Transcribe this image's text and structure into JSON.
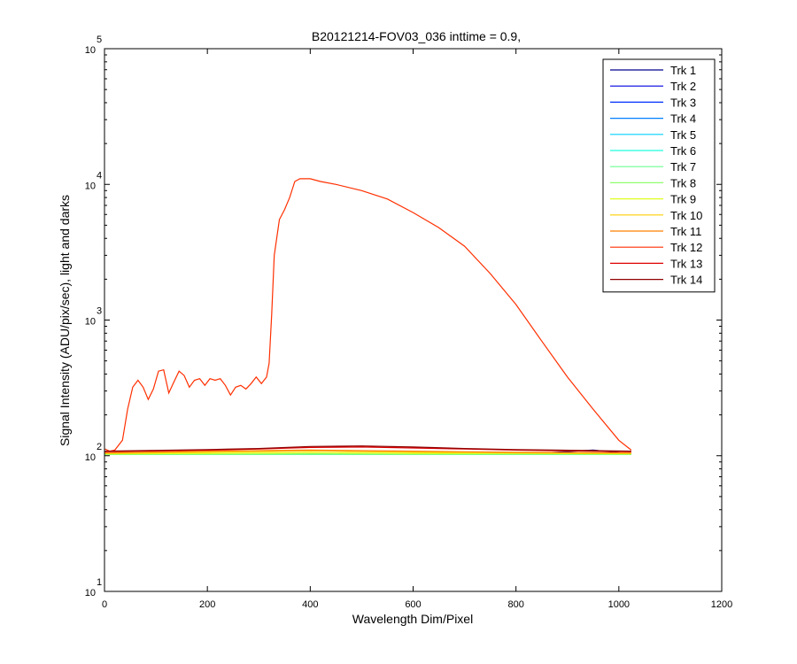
{
  "chart_data": {
    "type": "line",
    "title": "B20121214-FOV03_036 inttime = 0.9,",
    "xlabel": "Wavelength Dim/Pixel",
    "ylabel": "Signal Intensity (ADU/pix/sec), light and darks",
    "xlim": [
      0,
      1200
    ],
    "ylim": [
      10,
      100000
    ],
    "yscale": "log",
    "grid": false,
    "legend_position": "top-right",
    "x_ticks": [
      0,
      200,
      400,
      600,
      800,
      1000,
      1200
    ],
    "x_tick_labels": [
      "0",
      "200",
      "400",
      "600",
      "800",
      "1000",
      "1200"
    ],
    "y_ticks": [
      {
        "value": 10,
        "base": "10",
        "exp": "1"
      },
      {
        "value": 100,
        "base": "10",
        "exp": "2"
      },
      {
        "value": 1000,
        "base": "10",
        "exp": "3"
      },
      {
        "value": 10000,
        "base": "10",
        "exp": "4"
      },
      {
        "value": 100000,
        "base": "10",
        "exp": "5"
      }
    ],
    "series": [
      {
        "name": "Trk 1",
        "color": "#00008f",
        "x": [
          1,
          200,
          400,
          600,
          800,
          950,
          1024
        ],
        "y": [
          102,
          102,
          102,
          102,
          102,
          110,
          103
        ]
      },
      {
        "name": "Trk 2",
        "color": "#0000df",
        "x": [
          1,
          200,
          400,
          600,
          800,
          1024
        ],
        "y": [
          102,
          102,
          102,
          102,
          102,
          102
        ]
      },
      {
        "name": "Trk 3",
        "color": "#002fff",
        "x": [
          1,
          200,
          400,
          600,
          800,
          1024
        ],
        "y": [
          102,
          102,
          102,
          102,
          102,
          102
        ]
      },
      {
        "name": "Trk 4",
        "color": "#007fff",
        "x": [
          1,
          200,
          400,
          600,
          800,
          1024
        ],
        "y": [
          102,
          102,
          102,
          102,
          102,
          102
        ]
      },
      {
        "name": "Trk 5",
        "color": "#00cfff",
        "x": [
          1,
          200,
          400,
          600,
          800,
          1024
        ],
        "y": [
          102,
          102,
          102,
          102,
          102,
          102
        ]
      },
      {
        "name": "Trk 6",
        "color": "#1fffdf",
        "x": [
          1,
          200,
          400,
          600,
          800,
          1024
        ],
        "y": [
          102,
          102,
          102,
          102,
          102,
          102
        ]
      },
      {
        "name": "Trk 7",
        "color": "#6fff8f",
        "x": [
          1,
          200,
          400,
          600,
          800,
          1024
        ],
        "y": [
          102,
          102,
          102,
          102,
          102,
          102
        ]
      },
      {
        "name": "Trk 8",
        "color": "#8fff6f",
        "x": [
          1,
          200,
          400,
          600,
          800,
          1024
        ],
        "y": [
          103,
          103,
          104,
          103,
          103,
          103
        ]
      },
      {
        "name": "Trk 9",
        "color": "#dfff1f",
        "x": [
          1,
          200,
          400,
          600,
          800,
          1024
        ],
        "y": [
          103,
          104,
          105,
          104,
          104,
          103
        ]
      },
      {
        "name": "Trk 10",
        "color": "#ffcf00",
        "x": [
          1,
          200,
          400,
          600,
          800,
          1024
        ],
        "y": [
          104,
          106,
          108,
          106,
          105,
          104
        ]
      },
      {
        "name": "Trk 11",
        "color": "#ff7f00",
        "x": [
          1,
          200,
          400,
          600,
          800,
          1024
        ],
        "y": [
          105,
          108,
          110,
          108,
          106,
          105
        ]
      },
      {
        "name": "Trk 12",
        "color": "#ff2f00",
        "x": [
          1,
          10,
          20,
          35,
          45,
          55,
          65,
          75,
          85,
          95,
          105,
          115,
          125,
          135,
          145,
          155,
          165,
          175,
          185,
          195,
          205,
          215,
          225,
          235,
          245,
          255,
          265,
          275,
          285,
          295,
          305,
          315,
          320,
          325,
          330,
          340,
          350,
          360,
          370,
          380,
          400,
          420,
          450,
          500,
          550,
          600,
          650,
          700,
          750,
          800,
          850,
          900,
          950,
          1000,
          1024
        ],
        "y": [
          112,
          108,
          110,
          130,
          220,
          320,
          360,
          320,
          260,
          310,
          420,
          430,
          290,
          350,
          420,
          390,
          320,
          360,
          370,
          330,
          370,
          360,
          370,
          330,
          280,
          320,
          330,
          310,
          340,
          380,
          340,
          380,
          480,
          1100,
          3000,
          5500,
          6500,
          8000,
          10500,
          11000,
          11000,
          10500,
          10000,
          9000,
          7800,
          6200,
          4800,
          3500,
          2200,
          1300,
          700,
          380,
          220,
          130,
          110
        ]
      },
      {
        "name": "Trk 13",
        "color": "#df0000",
        "x": [
          1,
          200,
          300,
          400,
          500,
          600,
          700,
          800,
          1024
        ],
        "y": [
          107,
          110,
          112,
          115,
          116,
          114,
          112,
          110,
          107
        ]
      },
      {
        "name": "Trk 14",
        "color": "#8f0000",
        "x": [
          1,
          200,
          300,
          400,
          500,
          600,
          700,
          800,
          1024
        ],
        "y": [
          108,
          111,
          113,
          117,
          118,
          116,
          113,
          111,
          108
        ]
      }
    ]
  }
}
